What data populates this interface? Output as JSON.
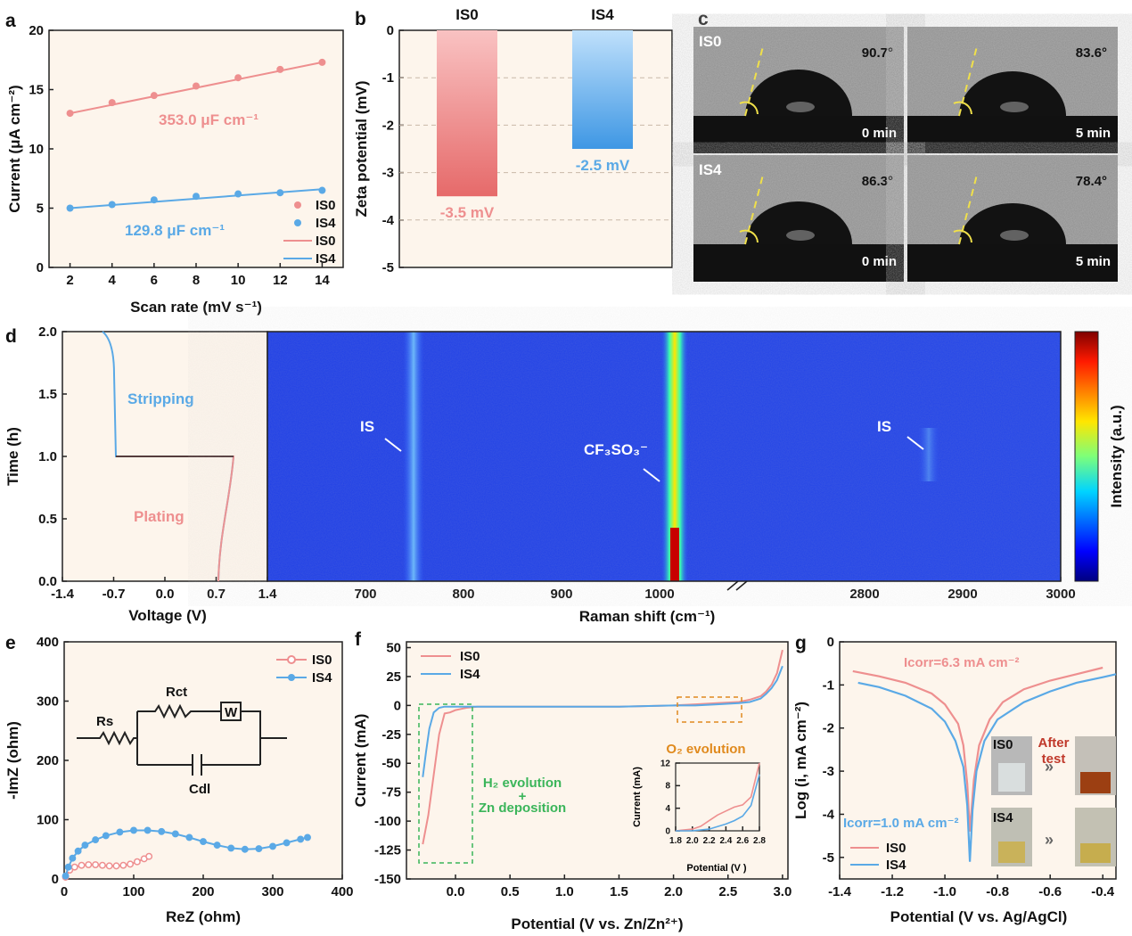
{
  "chart_data": [
    {
      "panel": "a",
      "type": "scatter",
      "xlabel": "Scan rate (mV s⁻¹)",
      "ylabel": "Current (μA cm⁻²)",
      "xlim": [
        1,
        15
      ],
      "ylim": [
        0,
        20
      ],
      "xticks": [
        2,
        4,
        6,
        8,
        10,
        12,
        14
      ],
      "yticks": [
        0,
        5,
        10,
        15,
        20
      ],
      "series": [
        {
          "name": "IS0",
          "color": "#ee8f8f",
          "x": [
            2,
            4,
            6,
            8,
            10,
            12,
            14
          ],
          "y": [
            13.0,
            13.9,
            14.5,
            15.3,
            16.0,
            16.7,
            17.3
          ],
          "fit": [
            13.0,
            17.3
          ],
          "annotation": "353.0 μF cm⁻¹"
        },
        {
          "name": "IS4",
          "color": "#5aa9e6",
          "x": [
            2,
            4,
            6,
            8,
            10,
            12,
            14
          ],
          "y": [
            5.0,
            5.3,
            5.7,
            6.0,
            6.2,
            6.3,
            6.5
          ],
          "fit": [
            5.0,
            6.6
          ],
          "annotation": "129.8 μF cm⁻¹"
        }
      ],
      "legend": [
        "IS0",
        "IS4",
        "IS0",
        "IS4"
      ]
    },
    {
      "panel": "b",
      "type": "bar",
      "ylabel": "Zeta potential (mV)",
      "ylim": [
        -5,
        0
      ],
      "yticks": [
        0,
        -1,
        -2,
        -3,
        -4,
        -5
      ],
      "categories": [
        "IS0",
        "IS4"
      ],
      "values": [
        -3.5,
        -2.5
      ],
      "value_labels": [
        "-3.5 mV",
        "-2.5 mV"
      ],
      "colors": [
        "#ee8f8f",
        "#5aa9e6"
      ]
    },
    {
      "panel": "c",
      "type": "image",
      "tiles": [
        {
          "sample": "IS0",
          "angle": "90.7°",
          "time": "0 min"
        },
        {
          "sample": "",
          "angle": "83.6°",
          "time": "5 min"
        },
        {
          "sample": "IS4",
          "angle": "86.3°",
          "time": "0 min"
        },
        {
          "sample": "",
          "angle": "78.4°",
          "time": "5 min"
        }
      ]
    },
    {
      "panel": "d",
      "type": "heatmap",
      "left": {
        "xlabel": "Voltage (V)",
        "ylabel": "Time (h)",
        "xlim": [
          -1.4,
          1.4
        ],
        "ylim": [
          0,
          2.0
        ],
        "xticks": [
          "-1.4",
          "-0.7",
          "0.0",
          "0.7",
          "1.4"
        ],
        "yticks": [
          "0.0",
          "0.5",
          "1.0",
          "1.5",
          "2.0"
        ],
        "labels": {
          "stripping": "Stripping",
          "plating": "Plating"
        }
      },
      "right": {
        "xlabel": "Raman shift (cm⁻¹)",
        "xticks1": [
          "700",
          "800",
          "900",
          "1000"
        ],
        "xticks2": [
          "2800",
          "2900",
          "3000"
        ],
        "annotations": [
          "IS",
          "CF₃SO₃⁻",
          "IS"
        ],
        "colorbar_label": "Intensity (a.u.)"
      }
    },
    {
      "panel": "e",
      "type": "line",
      "xlabel": "ReZ (ohm)",
      "ylabel": "-ImZ (ohm)",
      "xlim": [
        0,
        400
      ],
      "ylim": [
        0,
        400
      ],
      "xticks": [
        0,
        100,
        200,
        300,
        400
      ],
      "yticks": [
        0,
        100,
        200,
        300,
        400
      ],
      "circuit": {
        "rs": "Rs",
        "rct": "Rct",
        "w": "W",
        "cdl": "Cdl"
      },
      "series": [
        {
          "name": "IS0",
          "color": "#ee8f8f",
          "x": [
            2,
            8,
            15,
            25,
            35,
            45,
            55,
            65,
            75,
            85,
            95,
            105,
            115,
            122
          ],
          "y": [
            3,
            15,
            20,
            23,
            24,
            24,
            23,
            22,
            22,
            23,
            25,
            29,
            34,
            38
          ]
        },
        {
          "name": "IS4",
          "color": "#5aa9e6",
          "x": [
            2,
            6,
            12,
            20,
            30,
            45,
            60,
            80,
            100,
            120,
            140,
            160,
            180,
            200,
            220,
            240,
            260,
            280,
            300,
            320,
            340,
            350
          ],
          "y": [
            5,
            20,
            35,
            47,
            57,
            66,
            73,
            79,
            82,
            82,
            80,
            76,
            70,
            63,
            57,
            52,
            50,
            51,
            55,
            61,
            67,
            70
          ]
        }
      ]
    },
    {
      "panel": "f",
      "type": "line",
      "xlabel": "Potential (V vs. Zn/Zn²⁺)",
      "ylabel": "Current (mA)",
      "xlim": [
        -0.45,
        3.05
      ],
      "ylim": [
        -150,
        55
      ],
      "xticks": [
        "0.0",
        "0.5",
        "1.0",
        "1.5",
        "2.0",
        "2.5",
        "3.0"
      ],
      "yticks": [
        50,
        25,
        0,
        -25,
        -50,
        -75,
        -100,
        -125,
        -150
      ],
      "annotations": {
        "h2": "H₂ evolution",
        "plus": "+",
        "zn": "Zn deposition",
        "o2": "O₂ evolution"
      },
      "inset": {
        "xlabel": "Potential (V )",
        "ylabel": "Current (mA)",
        "xticks": [
          "1.8",
          "2.0",
          "2.2",
          "2.4",
          "2.6",
          "2.8"
        ],
        "yticks": [
          "0",
          "4",
          "8",
          "12"
        ]
      },
      "series": [
        {
          "name": "IS0",
          "color": "#ee8f8f",
          "x": [
            -0.3,
            -0.25,
            -0.2,
            -0.15,
            -0.1,
            -0.05,
            0,
            0.05,
            0.1,
            0.2,
            0.5,
            1.0,
            1.5,
            2.0,
            2.2,
            2.4,
            2.6,
            2.7,
            2.8,
            2.85,
            2.9,
            2.95,
            3.0
          ],
          "y": [
            -120,
            -95,
            -60,
            -25,
            -7,
            -6,
            -4,
            -3,
            -2,
            -1,
            -1,
            -1,
            -1,
            0,
            1,
            2,
            3,
            5,
            8,
            12,
            18,
            28,
            48
          ]
        },
        {
          "name": "IS4",
          "color": "#5aa9e6",
          "x": [
            -0.3,
            -0.27,
            -0.24,
            -0.2,
            -0.15,
            -0.1,
            -0.05,
            0,
            0.2,
            0.5,
            1.0,
            1.5,
            2.0,
            2.2,
            2.4,
            2.6,
            2.7,
            2.8,
            2.85,
            2.9,
            2.95,
            3.0
          ],
          "y": [
            -62,
            -40,
            -20,
            -6,
            -2,
            -1,
            -1,
            -1,
            -1,
            -1,
            -1,
            -1,
            0,
            0,
            1,
            2,
            3,
            6,
            10,
            15,
            22,
            34
          ]
        }
      ],
      "inset_series": [
        {
          "name": "IS0",
          "x": [
            1.8,
            2.0,
            2.1,
            2.2,
            2.3,
            2.4,
            2.5,
            2.6,
            2.7,
            2.8
          ],
          "y": [
            0,
            0.3,
            0.8,
            1.8,
            2.8,
            3.5,
            4.2,
            4.6,
            6.0,
            12
          ]
        },
        {
          "name": "IS4",
          "x": [
            1.8,
            2.0,
            2.2,
            2.4,
            2.5,
            2.6,
            2.7,
            2.8
          ],
          "y": [
            0,
            0,
            0.3,
            1.2,
            1.8,
            2.6,
            4.5,
            10
          ]
        }
      ]
    },
    {
      "panel": "g",
      "type": "line",
      "xlabel": "Potential (V vs. Ag/AgCl)",
      "ylabel": "Log (i, mA cm⁻²)",
      "xlim": [
        -1.4,
        -0.35
      ],
      "ylim": [
        -5.5,
        0
      ],
      "xticks": [
        "-1.4",
        "-1.2",
        "-1.0",
        "-0.8",
        "-0.6",
        "-0.4"
      ],
      "yticks": [
        0,
        -1,
        -2,
        -3,
        -4,
        -5
      ],
      "annotations": {
        "icorr_is0": "Icorr=6.3 mA cm⁻²",
        "icorr_is4": "Icorr=1.0 mA cm⁻²",
        "photo_is0": "IS0",
        "photo_is4": "IS4",
        "after": "After",
        "test": "test"
      },
      "series": [
        {
          "name": "IS0",
          "color": "#ee8f8f",
          "x": [
            -1.35,
            -1.25,
            -1.15,
            -1.05,
            -1.0,
            -0.95,
            -0.93,
            -0.915,
            -0.905,
            -0.89,
            -0.87,
            -0.83,
            -0.78,
            -0.7,
            -0.6,
            -0.5,
            -0.4
          ],
          "y": [
            -0.68,
            -0.8,
            -0.95,
            -1.2,
            -1.45,
            -1.9,
            -2.4,
            -3.3,
            -4.4,
            -3.2,
            -2.4,
            -1.8,
            -1.4,
            -1.1,
            -0.9,
            -0.75,
            -0.6
          ]
        },
        {
          "name": "IS4",
          "color": "#5aa9e6",
          "x": [
            -1.33,
            -1.25,
            -1.15,
            -1.05,
            -1.0,
            -0.96,
            -0.93,
            -0.915,
            -0.905,
            -0.895,
            -0.88,
            -0.85,
            -0.8,
            -0.7,
            -0.6,
            -0.5,
            -0.4,
            -0.35
          ],
          "y": [
            -0.95,
            -1.05,
            -1.25,
            -1.55,
            -1.85,
            -2.3,
            -2.9,
            -3.8,
            -5.1,
            -3.9,
            -3.0,
            -2.3,
            -1.8,
            -1.4,
            -1.15,
            -0.95,
            -0.82,
            -0.75
          ]
        }
      ],
      "legend": [
        "IS0",
        "IS4"
      ]
    }
  ]
}
